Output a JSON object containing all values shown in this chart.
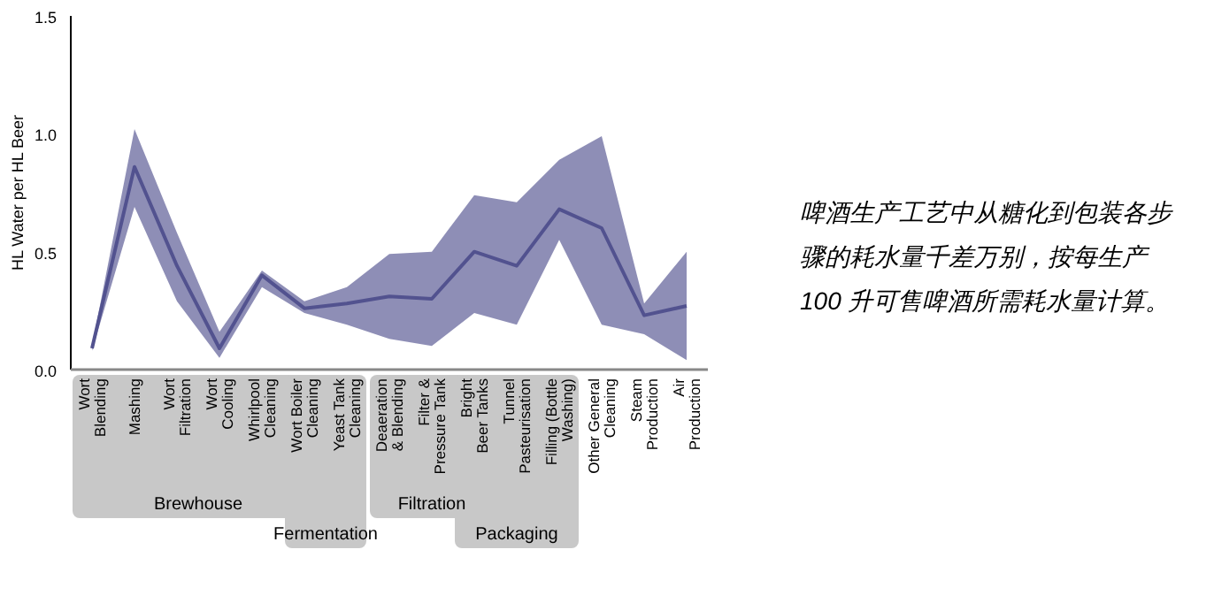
{
  "chart_data": {
    "type": "line",
    "ylabel": "HL Water per HL Beer",
    "categories": [
      "Wort Blending",
      "Mashing",
      "Wort Filtration",
      "Wort Cooling",
      "Whirlpool Cleaning",
      "Wort Boiler Cleaning",
      "Yeast Tank Cleaning",
      "Deaeration & Blending",
      "Filter & Pressure Tank",
      "Bright Beer Tanks",
      "Tunnel Pasteurisation",
      "Filling (Bottle Washing)",
      "Other General Cleaning",
      "Steam Production",
      "Air Production"
    ],
    "series": [
      {
        "color": "#52528f",
        "values": [
          0.09,
          0.86,
          0.44,
          0.09,
          0.4,
          0.26,
          0.28,
          0.31,
          0.3,
          0.5,
          0.44,
          0.68,
          0.6,
          0.23,
          0.27
        ],
        "lower": [
          0.08,
          0.69,
          0.29,
          0.05,
          0.35,
          0.24,
          0.19,
          0.13,
          0.1,
          0.24,
          0.19,
          0.55,
          0.19,
          0.15,
          0.04
        ],
        "upper": [
          0.1,
          1.02,
          0.58,
          0.16,
          0.42,
          0.29,
          0.35,
          0.49,
          0.5,
          0.74,
          0.71,
          0.89,
          0.99,
          0.28,
          0.5
        ]
      }
    ],
    "ylim": [
      0,
      1.5
    ],
    "yticks": [
      {
        "value": 0,
        "label": "0.0"
      },
      {
        "value": 0.5,
        "label": "0.5"
      },
      {
        "value": 1,
        "label": "1.0"
      },
      {
        "value": 1.5,
        "label": "1.5"
      }
    ],
    "annotations": [
      "Brewhouse",
      "Fermentation",
      "Filtration",
      "Packaging",
      "啤酒生产工艺中从糖化到包装各步骤的耗水量千差万别，按每生产 100 升可售啤酒所需耗水量计算。"
    ]
  }
}
